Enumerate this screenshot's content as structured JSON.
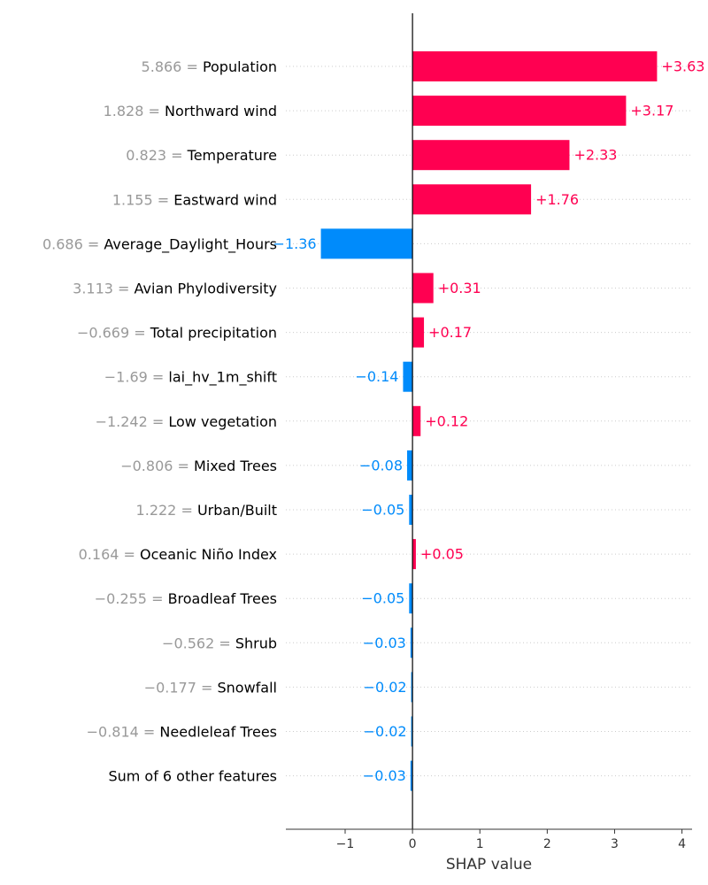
{
  "chart_data": {
    "type": "bar",
    "orientation": "horizontal",
    "title": "",
    "xlabel": "SHAP value",
    "ylabel": "",
    "xlim": [
      -1.88,
      4.15
    ],
    "xticks": [
      -1,
      0,
      1,
      2,
      3,
      4
    ],
    "xtick_labels": [
      "−1",
      "0",
      "1",
      "2",
      "3",
      "4"
    ],
    "grid": "dotted horizontal row guides",
    "colors": {
      "positive": "#ff0051",
      "negative": "#008bfb",
      "axis": "#000000",
      "feature_value": "#999999"
    },
    "rows": [
      {
        "feature_value": "5.866",
        "feature": "Population",
        "value": 3.63,
        "label": "+3.63"
      },
      {
        "feature_value": "1.828",
        "feature": "Northward wind",
        "value": 3.17,
        "label": "+3.17"
      },
      {
        "feature_value": "0.823",
        "feature": "Temperature",
        "value": 2.33,
        "label": "+2.33"
      },
      {
        "feature_value": "1.155",
        "feature": "Eastward wind",
        "value": 1.76,
        "label": "+1.76"
      },
      {
        "feature_value": "0.686",
        "feature": "Average_Daylight_Hours",
        "value": -1.36,
        "label": "−1.36"
      },
      {
        "feature_value": "3.113",
        "feature": "Avian Phylodiversity",
        "value": 0.31,
        "label": "+0.31"
      },
      {
        "feature_value": "−0.669",
        "feature": "Total precipitation",
        "value": 0.17,
        "label": "+0.17"
      },
      {
        "feature_value": "−1.69",
        "feature": "lai_hv_1m_shift",
        "value": -0.14,
        "label": "−0.14"
      },
      {
        "feature_value": "−1.242",
        "feature": "Low vegetation",
        "value": 0.12,
        "label": "+0.12"
      },
      {
        "feature_value": "−0.806",
        "feature": "Mixed Trees",
        "value": -0.08,
        "label": "−0.08"
      },
      {
        "feature_value": "1.222",
        "feature": "Urban/Built",
        "value": -0.05,
        "label": "−0.05"
      },
      {
        "feature_value": "0.164",
        "feature": "Oceanic Niño Index",
        "value": 0.05,
        "label": "+0.05"
      },
      {
        "feature_value": "−0.255",
        "feature": "Broadleaf Trees",
        "value": -0.05,
        "label": "−0.05"
      },
      {
        "feature_value": "−0.562",
        "feature": "Shrub",
        "value": -0.03,
        "label": "−0.03"
      },
      {
        "feature_value": "−0.177",
        "feature": "Snowfall",
        "value": -0.02,
        "label": "−0.02"
      },
      {
        "feature_value": "−0.814",
        "feature": "Needleleaf Trees",
        "value": -0.02,
        "label": "−0.02"
      },
      {
        "feature_value": "",
        "feature": "Sum of 6 other features",
        "value": -0.03,
        "label": "−0.03"
      }
    ]
  }
}
